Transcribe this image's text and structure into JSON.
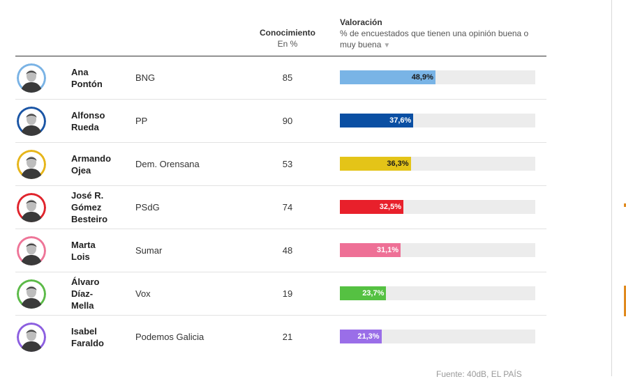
{
  "header": {
    "conocimiento_title": "Conocimiento",
    "conocimiento_sub": "En %",
    "valoracion_title": "Valoración",
    "valoracion_sub": "% de encuestados que tienen una opinión buena o muy buena",
    "sort_icon": "triangle-down-icon"
  },
  "chart_data": {
    "type": "bar",
    "title": "",
    "xlabel": "",
    "ylabel": "Valoración",
    "xlim": [
      0,
      100
    ],
    "columns": [
      "Conocimiento",
      "Valoración"
    ],
    "rows": [
      {
        "name": "Ana Pontón",
        "name_lines": [
          "Ana",
          "Pontón"
        ],
        "party": "BNG",
        "conocimiento": 85,
        "valoracion": 48.9,
        "label": "48,9%",
        "color": "#79b4e6",
        "label_color": "#1a1a1a",
        "avatar_bg": "#7ab3e5"
      },
      {
        "name": "Alfonso Rueda",
        "name_lines": [
          "Alfonso",
          "Rueda"
        ],
        "party": "PP",
        "conocimiento": 90,
        "valoracion": 37.6,
        "label": "37,6%",
        "color": "#0a4fa3",
        "label_color": "#ffffff",
        "avatar_bg": "#1a55a5"
      },
      {
        "name": "Armando Ojea",
        "name_lines": [
          "Armando",
          "Ojea"
        ],
        "party": "Dem. Orensana",
        "conocimiento": 53,
        "valoracion": 36.3,
        "label": "36,3%",
        "color": "#e4c418",
        "label_color": "#1a1a1a",
        "avatar_bg": "#e6b51a"
      },
      {
        "name": "José R. Gómez Besteiro",
        "name_lines": [
          "José R.",
          "Gómez",
          "Besteiro"
        ],
        "party": "PSdG",
        "conocimiento": 74,
        "valoracion": 32.5,
        "label": "32,5%",
        "color": "#e8202b",
        "label_color": "#ffffff",
        "avatar_bg": "#e0242c"
      },
      {
        "name": "Marta Lois",
        "name_lines": [
          "Marta",
          "Lois"
        ],
        "party": "Sumar",
        "conocimiento": 48,
        "valoracion": 31.1,
        "label": "31,1%",
        "color": "#ee7096",
        "label_color": "#ffffff",
        "avatar_bg": "#ee7598"
      },
      {
        "name": "Álvaro Díaz-Mella",
        "name_lines": [
          "Álvaro",
          "Díaz-",
          "Mella"
        ],
        "party": "Vox",
        "conocimiento": 19,
        "valoracion": 23.7,
        "label": "23,7%",
        "color": "#55c142",
        "label_color": "#ffffff",
        "avatar_bg": "#5cba48"
      },
      {
        "name": "Isabel Faraldo",
        "name_lines": [
          "Isabel",
          "Faraldo"
        ],
        "party": "Podemos Galicia",
        "conocimiento": 21,
        "valoracion": 21.3,
        "label": "21,3%",
        "color": "#9a6ee8",
        "label_color": "#ffffff",
        "avatar_bg": "#8c5fe0"
      }
    ]
  },
  "source": "Fuente: 40dB, EL PAÍS"
}
